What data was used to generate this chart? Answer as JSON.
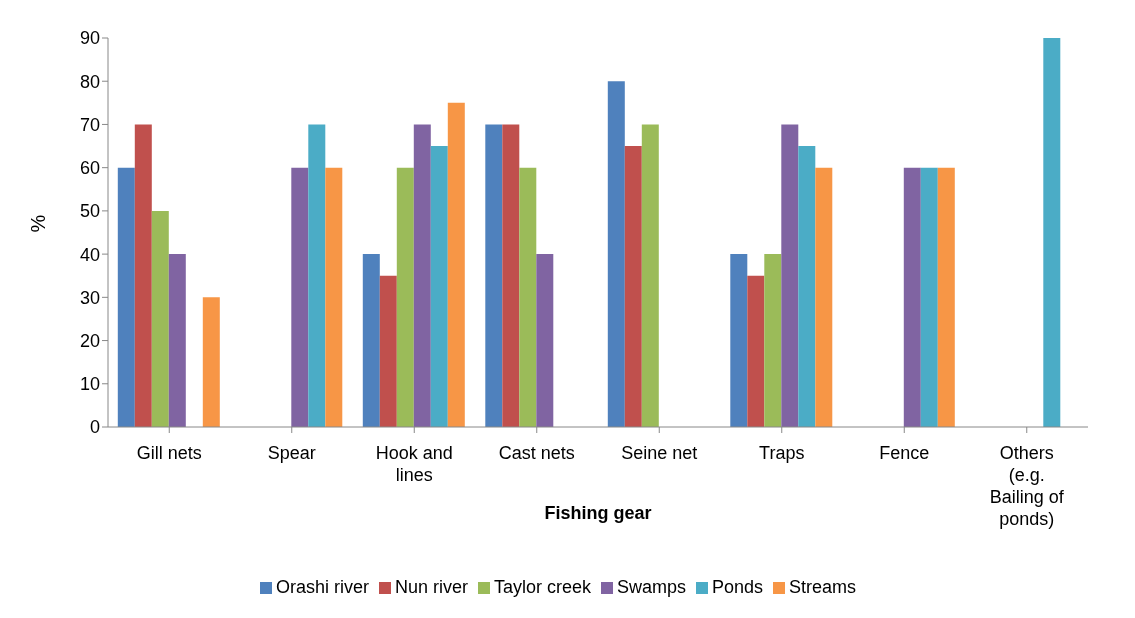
{
  "chart_data": {
    "type": "bar",
    "xlabel": "Fishing gear",
    "ylabel": "%",
    "categories": [
      "Gill nets",
      "Spear",
      "Hook and lines",
      "Cast nets",
      "Seine net",
      "Traps",
      "Fence",
      "Others (e.g. Bailing of ponds)"
    ],
    "series": [
      {
        "name": "Orashi river",
        "color": "#4f81bd",
        "values": [
          60,
          0,
          40,
          70,
          80,
          40,
          0,
          0
        ]
      },
      {
        "name": "Nun river",
        "color": "#c0504d",
        "values": [
          70,
          0,
          35,
          70,
          65,
          35,
          0,
          0
        ]
      },
      {
        "name": "Taylor creek",
        "color": "#9bbb59",
        "values": [
          50,
          0,
          60,
          60,
          70,
          40,
          0,
          0
        ]
      },
      {
        "name": "Swamps",
        "color": "#8064a2",
        "values": [
          40,
          60,
          70,
          40,
          0,
          70,
          60,
          0
        ]
      },
      {
        "name": "Ponds",
        "color": "#4bacc6",
        "values": [
          0,
          70,
          65,
          0,
          0,
          65,
          60,
          90
        ]
      },
      {
        "name": "Streams",
        "color": "#f79646",
        "values": [
          30,
          60,
          75,
          0,
          0,
          60,
          60,
          0
        ]
      }
    ],
    "ylim": [
      0,
      90
    ],
    "yticks": [
      0,
      10,
      20,
      30,
      40,
      50,
      60,
      70,
      80,
      90
    ],
    "grid": false,
    "legend": "bottom"
  }
}
